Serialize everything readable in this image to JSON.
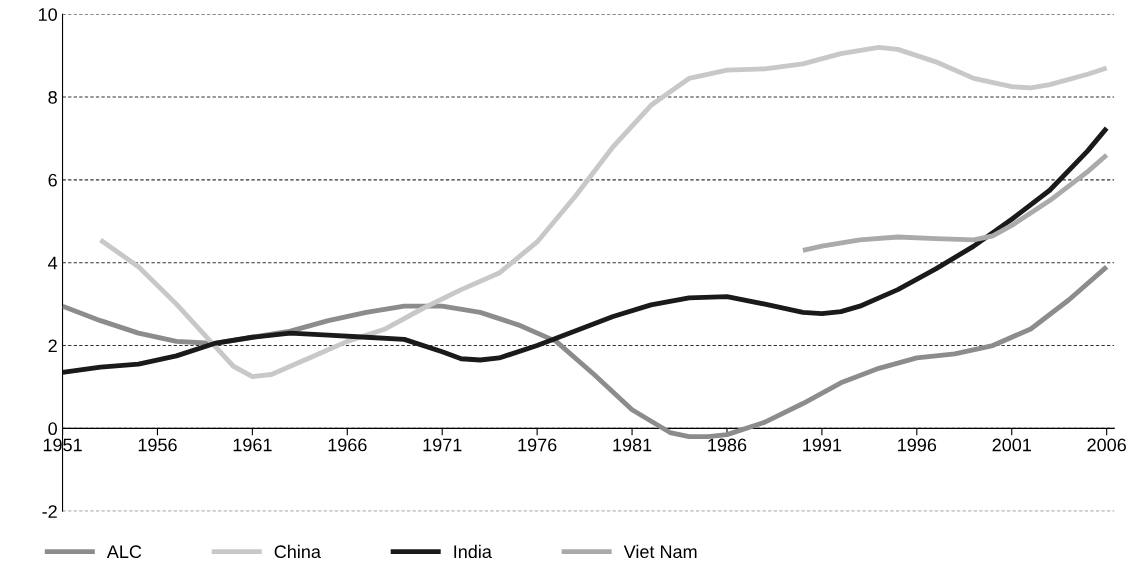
{
  "chart_data": {
    "type": "line",
    "xlim": [
      1951,
      2006.4
    ],
    "xticks": [
      1951,
      1956,
      1961,
      1966,
      1971,
      1976,
      1981,
      1986,
      1991,
      1996,
      2001,
      2006
    ],
    "ylim": [
      -2,
      10
    ],
    "yticks": [
      -2,
      0,
      2,
      4,
      6,
      8,
      10
    ],
    "grid": "y",
    "legend": "bottom left",
    "marker": "none",
    "line_style": "solid",
    "series": [
      {
        "name": "ALC",
        "color": "#8c8c8c",
        "x": [
          1951,
          1953,
          1955,
          1957,
          1959,
          1961,
          1963,
          1965,
          1967,
          1969,
          1971,
          1973,
          1975,
          1977,
          1979,
          1981,
          1983,
          1984,
          1985,
          1986,
          1988,
          1990,
          1992,
          1994,
          1996,
          1998,
          2000,
          2002,
          2004,
          2006
        ],
        "values": [
          2.95,
          2.6,
          2.3,
          2.1,
          2.05,
          2.2,
          2.35,
          2.6,
          2.8,
          2.95,
          2.95,
          2.8,
          2.5,
          2.1,
          1.3,
          0.45,
          -0.1,
          -0.2,
          -0.2,
          -0.15,
          0.15,
          0.6,
          1.1,
          1.45,
          1.7,
          1.8,
          2.0,
          2.4,
          3.1,
          3.9
        ]
      },
      {
        "name": "China",
        "color": "#c8c8c8",
        "x": [
          1953,
          1955,
          1957,
          1959,
          1960,
          1961,
          1962,
          1964,
          1966,
          1968,
          1970,
          1972,
          1974,
          1976,
          1978,
          1980,
          1982,
          1984,
          1986,
          1988,
          1990,
          1992,
          1994,
          1995,
          1997,
          1999,
          2001,
          2002,
          2003,
          2005,
          2006
        ],
        "values": [
          4.55,
          3.9,
          3.0,
          2.0,
          1.5,
          1.25,
          1.3,
          1.7,
          2.1,
          2.4,
          2.9,
          3.35,
          3.75,
          4.5,
          5.6,
          6.8,
          7.8,
          8.45,
          8.65,
          8.68,
          8.8,
          9.05,
          9.2,
          9.15,
          8.85,
          8.45,
          8.25,
          8.22,
          8.3,
          8.55,
          8.7
        ]
      },
      {
        "name": "India",
        "color": "#1a1a1a",
        "x": [
          1951,
          1953,
          1955,
          1957,
          1959,
          1961,
          1963,
          1965,
          1967,
          1969,
          1971,
          1972,
          1973,
          1974,
          1976,
          1978,
          1980,
          1982,
          1984,
          1986,
          1988,
          1990,
          1991,
          1992,
          1993,
          1995,
          1997,
          1999,
          2001,
          2003,
          2005,
          2006
        ],
        "values": [
          1.35,
          1.48,
          1.55,
          1.75,
          2.05,
          2.2,
          2.3,
          2.25,
          2.2,
          2.15,
          1.85,
          1.68,
          1.65,
          1.7,
          2.0,
          2.35,
          2.7,
          2.98,
          3.15,
          3.18,
          3.0,
          2.8,
          2.77,
          2.82,
          2.95,
          3.35,
          3.85,
          4.4,
          5.05,
          5.75,
          6.7,
          7.25
        ]
      },
      {
        "name": "Viet Nam",
        "color": "#aaaaaa",
        "x": [
          1990,
          1991,
          1993,
          1995,
          1997,
          1999,
          2000,
          2001,
          2003,
          2005,
          2006
        ],
        "values": [
          4.3,
          4.4,
          4.55,
          4.62,
          4.58,
          4.55,
          4.65,
          4.9,
          5.5,
          6.2,
          6.6
        ]
      }
    ]
  }
}
